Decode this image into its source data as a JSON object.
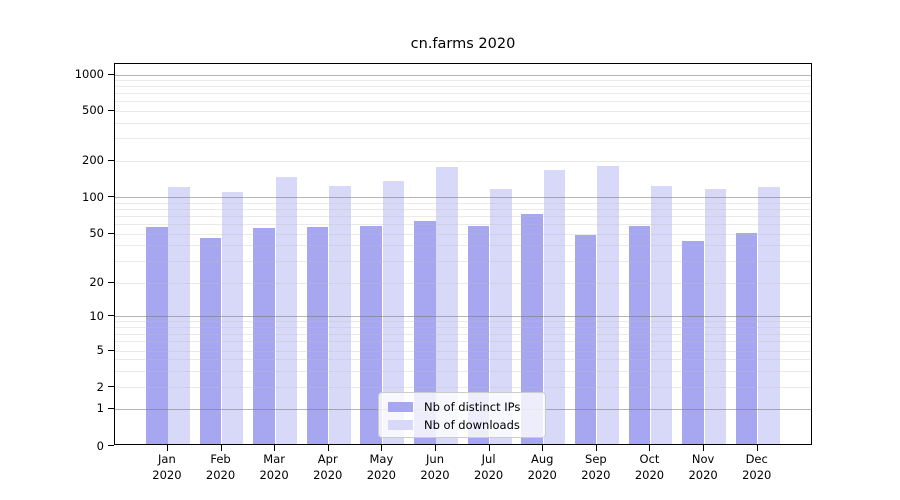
{
  "chart_data": {
    "type": "bar",
    "title": "cn.farms 2020",
    "categories": [
      "Jan",
      "Feb",
      "Mar",
      "Apr",
      "May",
      "Jun",
      "Jul",
      "Aug",
      "Sep",
      "Oct",
      "Nov",
      "Dec"
    ],
    "category_year_line": "2020",
    "series": [
      {
        "name": "Nb of distinct IPs",
        "color": "#a7a7f1",
        "values": [
          54,
          44,
          53,
          54,
          56,
          61,
          56,
          70,
          47,
          56,
          42,
          49
        ]
      },
      {
        "name": "Nb of downloads",
        "color": "#d8d8f8",
        "values": [
          116,
          106,
          140,
          119,
          130,
          170,
          113,
          161,
          175,
          119,
          112,
          117
        ]
      }
    ],
    "yscale": "symlog",
    "ylim": [
      0,
      1200
    ],
    "yticks": [
      0,
      1,
      2,
      5,
      10,
      20,
      50,
      100,
      200,
      500,
      1000
    ],
    "grid": "horizontal, major decades darker + log minor lines",
    "legend_position": "lower center",
    "xlabel": "",
    "ylabel": ""
  }
}
